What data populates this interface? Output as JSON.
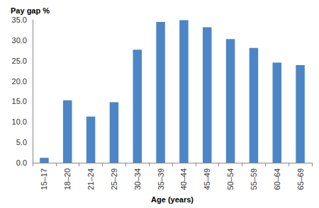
{
  "chart_data": {
    "type": "bar",
    "x_label": "Age (years)",
    "y_label": "Pay gap %",
    "categories": [
      "15–17",
      "18–20",
      "21–24",
      "25–29",
      "30–34",
      "35–39",
      "40–44",
      "45–49",
      "50–54",
      "55–59",
      "60–64",
      "65–69"
    ],
    "values": [
      1.2,
      15.3,
      11.3,
      14.8,
      27.7,
      34.5,
      34.9,
      33.2,
      30.3,
      28.1,
      24.5,
      23.9
    ],
    "color": "#4a86c8",
    "ylim": [
      0,
      35
    ],
    "yticks": [
      {
        "value": 0,
        "label": "0.0"
      },
      {
        "value": 5,
        "label": "5.0"
      },
      {
        "value": 10,
        "label": "10.0"
      },
      {
        "value": 15,
        "label": "15.0"
      },
      {
        "value": 20,
        "label": "20.0"
      },
      {
        "value": 25,
        "label": "25.0"
      },
      {
        "value": 30,
        "label": "30.0"
      },
      {
        "value": 35,
        "label": "35.0"
      }
    ],
    "grid": false
  }
}
